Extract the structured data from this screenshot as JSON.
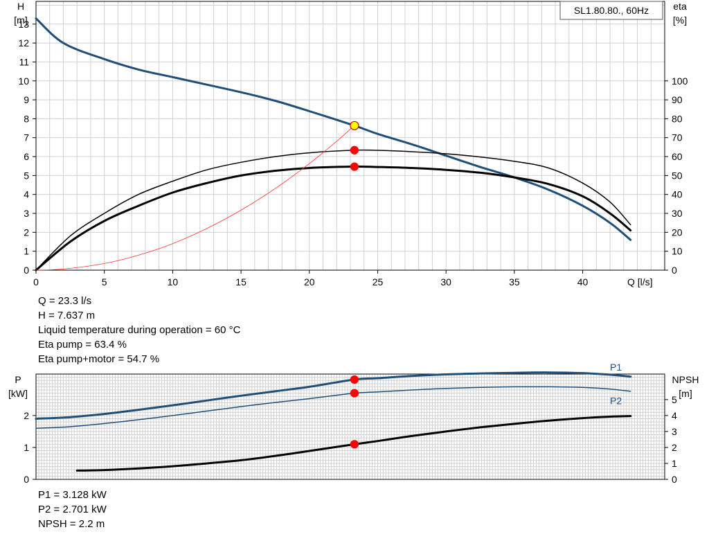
{
  "chart_data": [
    {
      "type": "line",
      "title": "SL1.80.80., 60Hz",
      "xlabel": "Q [l/s]",
      "ylabel": "H\n[m]",
      "y2label": "eta\n[%]",
      "xlim": [
        0,
        46
      ],
      "ylim": [
        0,
        14.2
      ],
      "y2lim": [
        0,
        142
      ],
      "xticks": [
        0,
        5,
        10,
        15,
        20,
        25,
        30,
        35,
        40
      ],
      "yticks": [
        0,
        1,
        2,
        3,
        4,
        5,
        6,
        7,
        8,
        9,
        10,
        11,
        12,
        13
      ],
      "y2ticks": [
        0,
        10,
        20,
        30,
        40,
        50,
        60,
        70,
        80,
        90,
        100
      ],
      "grid": true,
      "series": [
        {
          "key": "H",
          "axis": "y",
          "color": "#1f4e79",
          "width": 3,
          "x": [
            0,
            2,
            5,
            7.5,
            10,
            12.5,
            15,
            17.5,
            20,
            23.3,
            25,
            27.5,
            30,
            32.5,
            35,
            37.5,
            40,
            42,
            43.5
          ],
          "y": [
            13.3,
            12.0,
            11.15,
            10.6,
            10.2,
            9.8,
            9.4,
            8.95,
            8.4,
            7.637,
            7.2,
            6.65,
            6.05,
            5.45,
            4.9,
            4.25,
            3.4,
            2.5,
            1.6
          ]
        },
        {
          "key": "eta-pump",
          "axis": "y2",
          "color": "#000000",
          "width": 1.5,
          "x": [
            0,
            2.5,
            5,
            7.5,
            10,
            12.5,
            15,
            17.5,
            20,
            23.3,
            25,
            27.5,
            30,
            32.5,
            35,
            37.5,
            40,
            42,
            43.5
          ],
          "y": [
            0,
            18,
            30,
            40,
            47,
            53,
            57,
            60,
            62,
            63.4,
            63.3,
            62.6,
            61.5,
            59.8,
            57.5,
            54,
            46,
            36,
            24
          ]
        },
        {
          "key": "eta-pump-motor",
          "axis": "y2",
          "color": "#000000",
          "width": 3,
          "x": [
            0,
            2.5,
            5,
            7.5,
            10,
            12.5,
            15,
            17.5,
            20,
            23.3,
            25,
            27.5,
            30,
            32.5,
            35,
            37.5,
            40,
            42,
            43.5
          ],
          "y": [
            0,
            15,
            26,
            34,
            41,
            46,
            50,
            52.5,
            54,
            54.7,
            54.5,
            54,
            53,
            51.5,
            49,
            45.5,
            39,
            30,
            21
          ]
        },
        {
          "key": "system",
          "axis": "y",
          "color": "#ff3333",
          "width": 0.8,
          "x": [
            0,
            2,
            5,
            7.5,
            10,
            12.5,
            15,
            17.5,
            20,
            22,
            23.3
          ],
          "y": [
            0,
            0.06,
            0.35,
            0.79,
            1.4,
            2.2,
            3.17,
            4.31,
            5.63,
            6.81,
            7.637
          ]
        }
      ],
      "markers": [
        {
          "axis": "y",
          "x": 23.3,
          "y": 7.637,
          "fill": "#ffff00",
          "stroke": "#cc0000"
        },
        {
          "axis": "y2",
          "x": 23.3,
          "y": 63.4,
          "fill": "#ff0000",
          "stroke": "#ff0000"
        },
        {
          "axis": "y2",
          "x": 23.3,
          "y": 54.7,
          "fill": "#ff0000",
          "stroke": "#ff0000"
        }
      ]
    },
    {
      "type": "line",
      "xlabel": "",
      "ylabel": "P\n[kW]",
      "y2label": "NPSH\n[m]",
      "xlim": [
        0,
        46
      ],
      "ylim": [
        0,
        3.3
      ],
      "y2lim": [
        0,
        6.6
      ],
      "yticks": [
        0,
        1,
        2
      ],
      "y2ticks": [
        0,
        1,
        2,
        3,
        4,
        5
      ],
      "grid": true,
      "series": [
        {
          "key": "P1",
          "name": "P1",
          "axis": "y",
          "color": "#1f4e79",
          "width": 3,
          "x": [
            0,
            2.5,
            5,
            7.5,
            10,
            12.5,
            15,
            17.5,
            20,
            23.3,
            25,
            27.5,
            30,
            32.5,
            35,
            37.5,
            40,
            42,
            43.5
          ],
          "y": [
            1.9,
            1.95,
            2.05,
            2.18,
            2.32,
            2.47,
            2.62,
            2.76,
            2.9,
            3.128,
            3.17,
            3.24,
            3.29,
            3.32,
            3.34,
            3.35,
            3.33,
            3.28,
            3.22
          ]
        },
        {
          "key": "P2",
          "name": "P2",
          "axis": "y",
          "color": "#1f4e79",
          "width": 1.5,
          "x": [
            0,
            2.5,
            5,
            7.5,
            10,
            12.5,
            15,
            17.5,
            20,
            23.3,
            25,
            27.5,
            30,
            32.5,
            35,
            37.5,
            40,
            42,
            43.5
          ],
          "y": [
            1.6,
            1.65,
            1.75,
            1.87,
            2.0,
            2.14,
            2.28,
            2.41,
            2.53,
            2.701,
            2.74,
            2.8,
            2.85,
            2.88,
            2.9,
            2.9,
            2.88,
            2.83,
            2.76
          ]
        },
        {
          "key": "NPSH",
          "axis": "y2",
          "color": "#000000",
          "width": 3,
          "x": [
            3,
            5,
            7.5,
            10,
            12.5,
            15,
            17.5,
            20,
            23.3,
            25,
            27.5,
            30,
            32.5,
            35,
            37.5,
            40,
            42,
            43.5
          ],
          "y": [
            0.55,
            0.58,
            0.68,
            0.82,
            1.0,
            1.2,
            1.47,
            1.78,
            2.2,
            2.4,
            2.72,
            3.0,
            3.26,
            3.48,
            3.68,
            3.84,
            3.93,
            3.97
          ]
        }
      ],
      "markers": [
        {
          "axis": "y",
          "x": 23.3,
          "y": 3.128,
          "fill": "#ff0000",
          "stroke": "#ff0000"
        },
        {
          "axis": "y",
          "x": 23.3,
          "y": 2.701,
          "fill": "#ff0000",
          "stroke": "#ff0000"
        },
        {
          "axis": "y2",
          "x": 23.3,
          "y": 2.2,
          "fill": "#ff0000",
          "stroke": "#ff0000"
        }
      ]
    }
  ],
  "info_top": [
    "Q = 23.3 l/s",
    "H = 7.637 m",
    "Liquid temperature during operation = 60 °C",
    "Eta pump = 63.4 %",
    "Eta pump+motor = 54.7 %"
  ],
  "info_bottom": [
    "P1 = 3.128 kW",
    "P2 = 2.701 kW",
    "NPSH = 2.2 m"
  ]
}
